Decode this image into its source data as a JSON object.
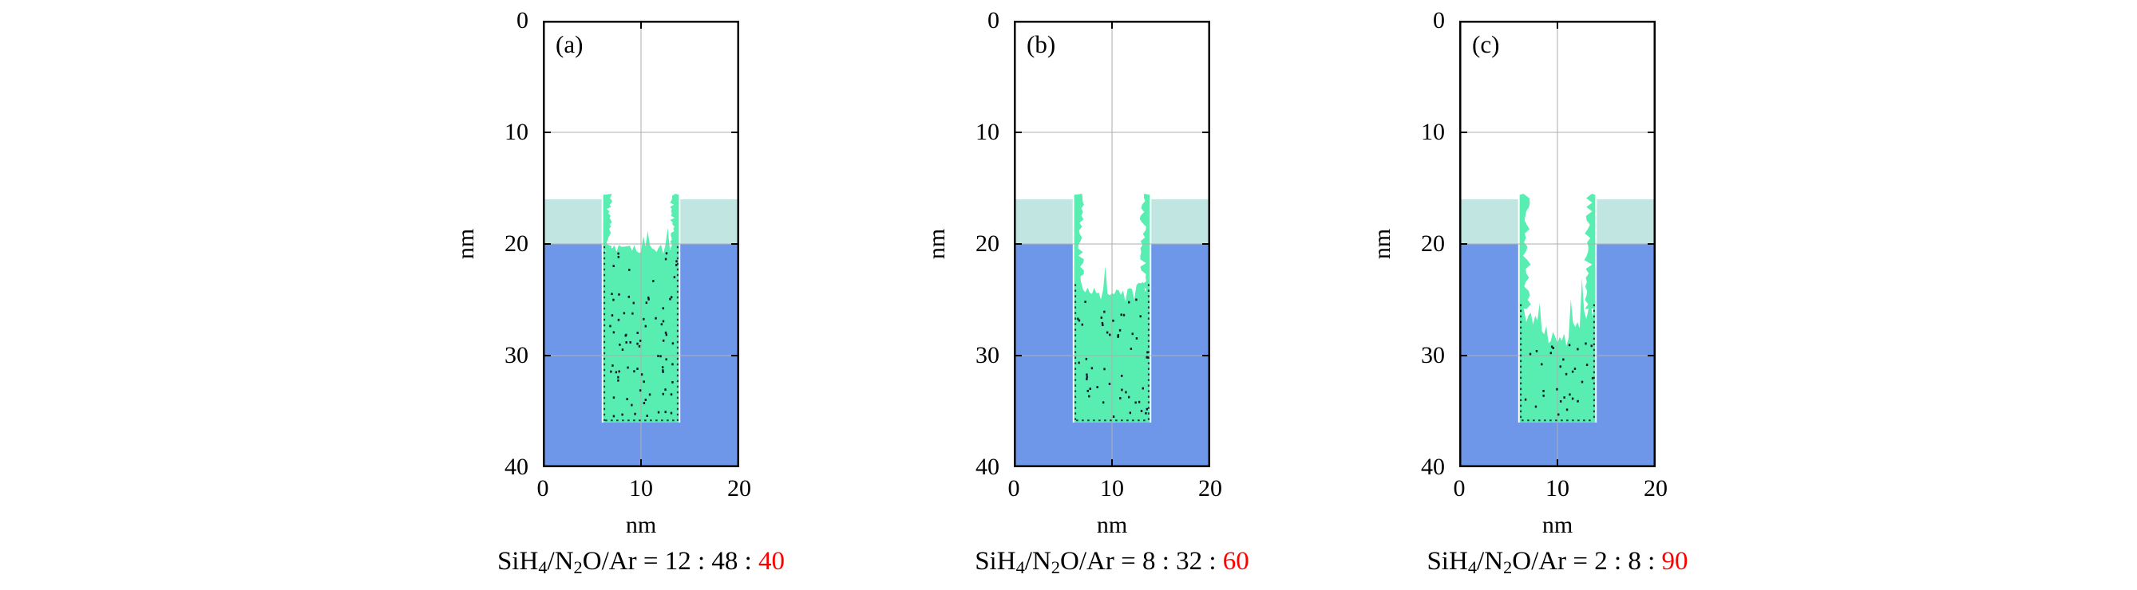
{
  "axes": {
    "x_label": "nm",
    "y_label": "nm",
    "x_ticks": [
      "0",
      "10",
      "20"
    ],
    "y_ticks": [
      "0",
      "10",
      "20",
      "30",
      "40"
    ],
    "x_tick_vals": [
      0,
      10,
      20
    ],
    "y_tick_vals": [
      0,
      10,
      20,
      30,
      40
    ],
    "x_grid": [
      10
    ],
    "y_grid": [
      10,
      20,
      30
    ]
  },
  "colors": {
    "substrate": "#6f97e9",
    "mask": "#c1e5e1",
    "deposit": "#58eeb1",
    "dots": "#10182b",
    "grid": "#b0b0b0",
    "axis": "#000000",
    "highlight": "#ff0000"
  },
  "panels": [
    {
      "label": "(a)",
      "caption": {
        "f1": "SiH",
        "s1": "4",
        "f2": "/N",
        "s2": "2",
        "f3": "O/Ar = ",
        "ratio": "12 : 48 : ",
        "highlight": "40"
      }
    },
    {
      "label": "(b)",
      "caption": {
        "f1": "SiH",
        "s1": "4",
        "f2": "/N",
        "s2": "2",
        "f3": "O/Ar = ",
        "ratio": "8 : 32 : ",
        "highlight": "60"
      }
    },
    {
      "label": "(c)",
      "caption": {
        "f1": "SiH",
        "s1": "4",
        "f2": "/N",
        "s2": "2",
        "f3": "O/Ar = ",
        "ratio": "2 : 8 : ",
        "highlight": "90"
      }
    }
  ],
  "chart_data": [
    {
      "type": "area",
      "panel": "(a)",
      "gas_ratio": {
        "SiH4": 12,
        "N2O": 48,
        "Ar": 40
      },
      "x_range_nm": [
        0,
        20
      ],
      "y_range_nm": [
        0,
        40
      ],
      "substrate_y_nm": [
        20,
        40
      ],
      "mask_y_nm": [
        16,
        20
      ],
      "trench_x_nm": [
        6,
        14
      ],
      "trench_bottom_nm": 36,
      "deposit_fill_top_nm": 20.6,
      "bowl_nm": 0.4,
      "roughness_nm": 0.55,
      "sidewall_top_nm": 15.5,
      "sidewall_base_nm": 0.35,
      "sidewall_jitter_nm": 0.55,
      "dot_count": 82,
      "seed": 7
    },
    {
      "type": "area",
      "panel": "(b)",
      "gas_ratio": {
        "SiH4": 8,
        "N2O": 32,
        "Ar": 60
      },
      "x_range_nm": [
        0,
        20
      ],
      "y_range_nm": [
        0,
        40
      ],
      "substrate_y_nm": [
        20,
        40
      ],
      "mask_y_nm": [
        16,
        20
      ],
      "trench_x_nm": [
        6,
        14
      ],
      "trench_bottom_nm": 36,
      "deposit_fill_top_nm": 24.8,
      "bowl_nm": 1.2,
      "roughness_nm": 0.7,
      "sidewall_top_nm": 15.5,
      "sidewall_base_nm": 0.35,
      "sidewall_jitter_nm": 0.7,
      "dot_count": 52,
      "seed": 13
    },
    {
      "type": "area",
      "panel": "(c)",
      "gas_ratio": {
        "SiH4": 2,
        "N2O": 8,
        "Ar": 90
      },
      "x_range_nm": [
        0,
        20
      ],
      "y_range_nm": [
        0,
        40
      ],
      "substrate_y_nm": [
        20,
        40
      ],
      "mask_y_nm": [
        16,
        20
      ],
      "trench_x_nm": [
        6,
        14
      ],
      "trench_bottom_nm": 36,
      "deposit_fill_top_nm": 28.6,
      "bowl_nm": 3.2,
      "roughness_nm": 1.0,
      "sidewall_top_nm": 15.5,
      "sidewall_base_nm": 0.3,
      "sidewall_jitter_nm": 0.9,
      "dot_count": 30,
      "seed": 21
    }
  ]
}
